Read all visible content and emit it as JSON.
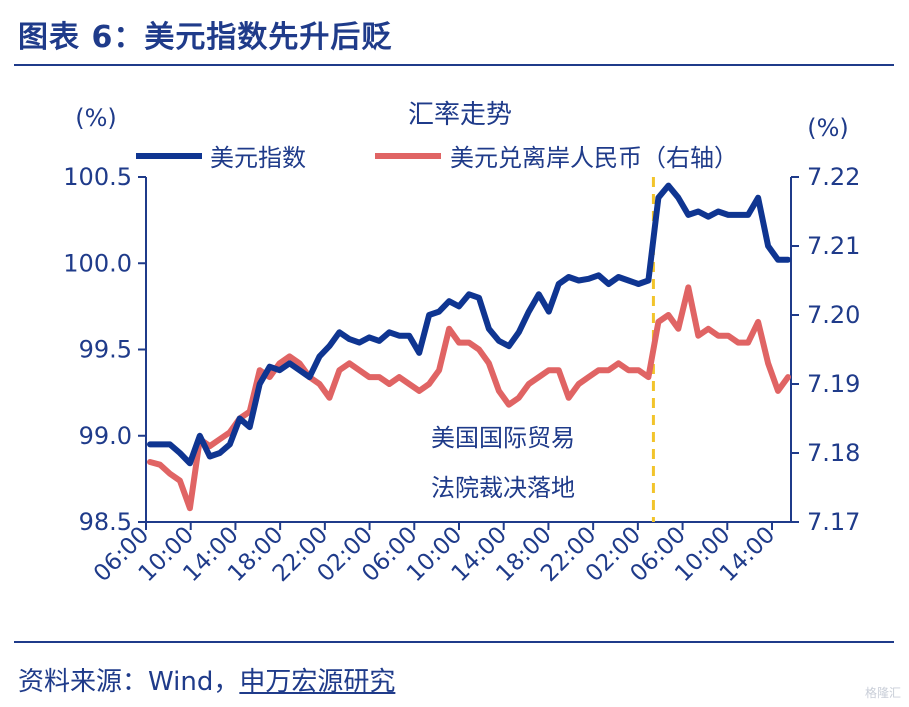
{
  "header": {
    "title": "图表 6：美元指数先升后贬"
  },
  "footer": {
    "source_prefix": "资料来源：Wind，",
    "source_brand": "申万宏源研究"
  },
  "watermark": "格隆汇",
  "colors": {
    "navy": "#1f3b8a",
    "dxy": "#0f3591",
    "cny": "#e06464",
    "dash": "#f2c42b"
  },
  "chart_data": {
    "type": "line",
    "title": "汇率走势",
    "left_unit": "(%)",
    "right_unit": "(%)",
    "ylim_left": [
      98.5,
      100.5
    ],
    "ylim_right": [
      7.17,
      7.22
    ],
    "yticks_left": [
      "98.5",
      "99.0",
      "99.5",
      "100.0",
      "100.5"
    ],
    "yticks_right": [
      "7.17",
      "7.18",
      "7.19",
      "7.20",
      "7.21",
      "7.22"
    ],
    "xtick_labels": [
      "06:00",
      "10:00",
      "14:00",
      "18:00",
      "22:00",
      "02:00",
      "06:00",
      "10:00",
      "14:00",
      "18:00",
      "22:00",
      "02:00",
      "06:00",
      "10:00",
      "14:00"
    ],
    "annotation": [
      "美国国际贸易",
      "法院裁决落地"
    ],
    "event_index": 50.5,
    "series": [
      {
        "name": "美元指数",
        "axis": "left",
        "values": [
          98.95,
          98.95,
          98.95,
          98.9,
          98.84,
          99.0,
          98.88,
          98.9,
          98.95,
          99.1,
          99.05,
          99.3,
          99.4,
          99.38,
          99.42,
          99.38,
          99.34,
          99.46,
          99.52,
          99.6,
          99.56,
          99.54,
          99.57,
          99.55,
          99.6,
          99.58,
          99.58,
          99.48,
          99.7,
          99.72,
          99.78,
          99.75,
          99.82,
          99.8,
          99.62,
          99.55,
          99.52,
          99.6,
          99.72,
          99.82,
          99.72,
          99.88,
          99.92,
          99.9,
          99.91,
          99.93,
          99.88,
          99.92,
          99.9,
          99.88,
          99.9,
          100.38,
          100.45,
          100.38,
          100.28,
          100.3,
          100.27,
          100.3,
          100.28,
          100.28,
          100.28,
          100.38,
          100.1,
          100.02,
          100.02
        ]
      },
      {
        "name": "美元兑离岸人民币（右轴）",
        "axis": "right",
        "values": [
          7.1787,
          7.1783,
          7.177,
          7.176,
          7.172,
          7.182,
          7.181,
          7.182,
          7.183,
          7.185,
          7.186,
          7.192,
          7.191,
          7.193,
          7.194,
          7.193,
          7.191,
          7.19,
          7.188,
          7.192,
          7.193,
          7.192,
          7.191,
          7.191,
          7.19,
          7.191,
          7.19,
          7.189,
          7.19,
          7.192,
          7.198,
          7.196,
          7.196,
          7.195,
          7.193,
          7.189,
          7.187,
          7.188,
          7.19,
          7.191,
          7.192,
          7.192,
          7.188,
          7.19,
          7.191,
          7.192,
          7.192,
          7.193,
          7.192,
          7.192,
          7.191,
          7.199,
          7.2,
          7.198,
          7.204,
          7.197,
          7.198,
          7.197,
          7.197,
          7.196,
          7.196,
          7.199,
          7.193,
          7.189,
          7.191
        ]
      }
    ],
    "grid": false,
    "legend_position": "top"
  }
}
